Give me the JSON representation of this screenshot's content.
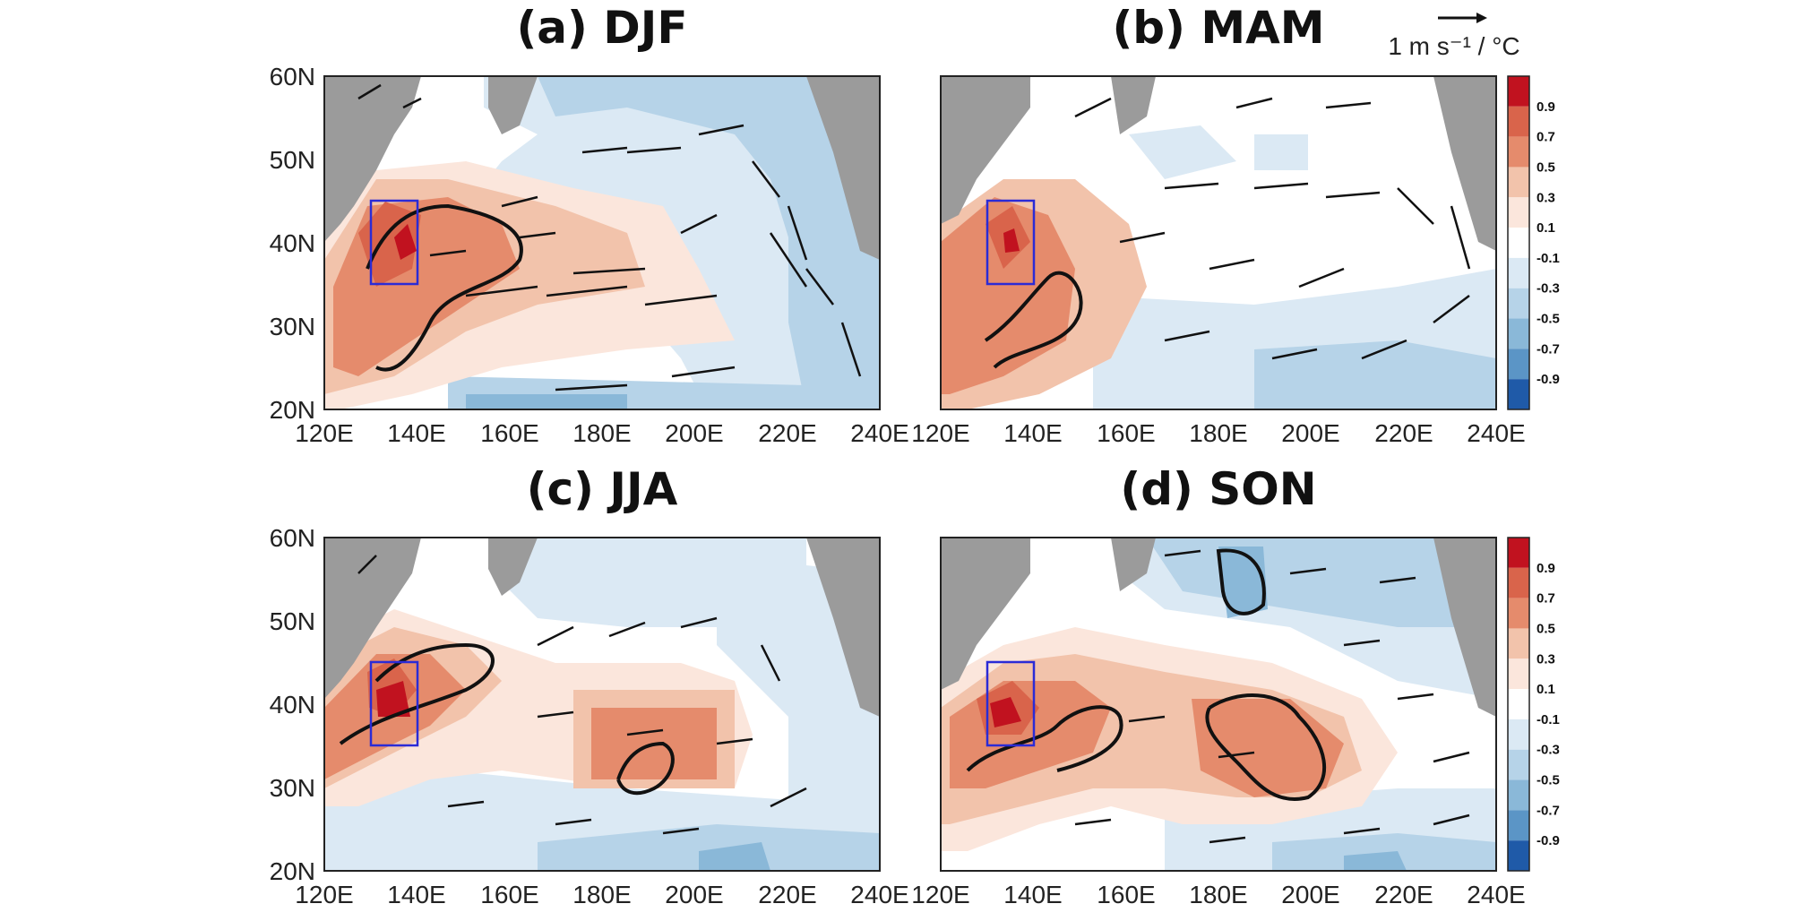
{
  "panels": [
    {
      "id": "a",
      "title": "(a) DJF"
    },
    {
      "id": "b",
      "title": "(b) MAM"
    },
    {
      "id": "c",
      "title": "(c) JJA"
    },
    {
      "id": "d",
      "title": "(d) SON"
    }
  ],
  "axes": {
    "lat_ticks": [
      "60N",
      "50N",
      "40N",
      "30N",
      "20N"
    ],
    "lon_ticks": [
      "120E",
      "140E",
      "160E",
      "180E",
      "200E",
      "220E",
      "240E"
    ],
    "lon_range": [
      120,
      240
    ],
    "lat_range": [
      20,
      60
    ]
  },
  "reference_vector": {
    "label": "1 m s⁻¹ / °C"
  },
  "colorbar": {
    "labels": [
      "0.9",
      "0.7",
      "0.5",
      "0.3",
      "0.1",
      "-0.1",
      "-0.3",
      "-0.5",
      "-0.7",
      "-0.9"
    ],
    "colors": [
      "#c1121f",
      "#d9644b",
      "#e58b6c",
      "#f2c3ab",
      "#fbe6dc",
      "#ffffff",
      "#dbe9f4",
      "#b6d3e8",
      "#8ab8d8",
      "#5b95c6",
      "#1f5aa8"
    ]
  },
  "colors": {
    "land": "#9b9b9b",
    "box": "#2b2bd6",
    "vector": "#111111"
  },
  "box_region": {
    "lon": [
      130,
      140
    ],
    "lat": [
      35,
      45
    ]
  }
}
